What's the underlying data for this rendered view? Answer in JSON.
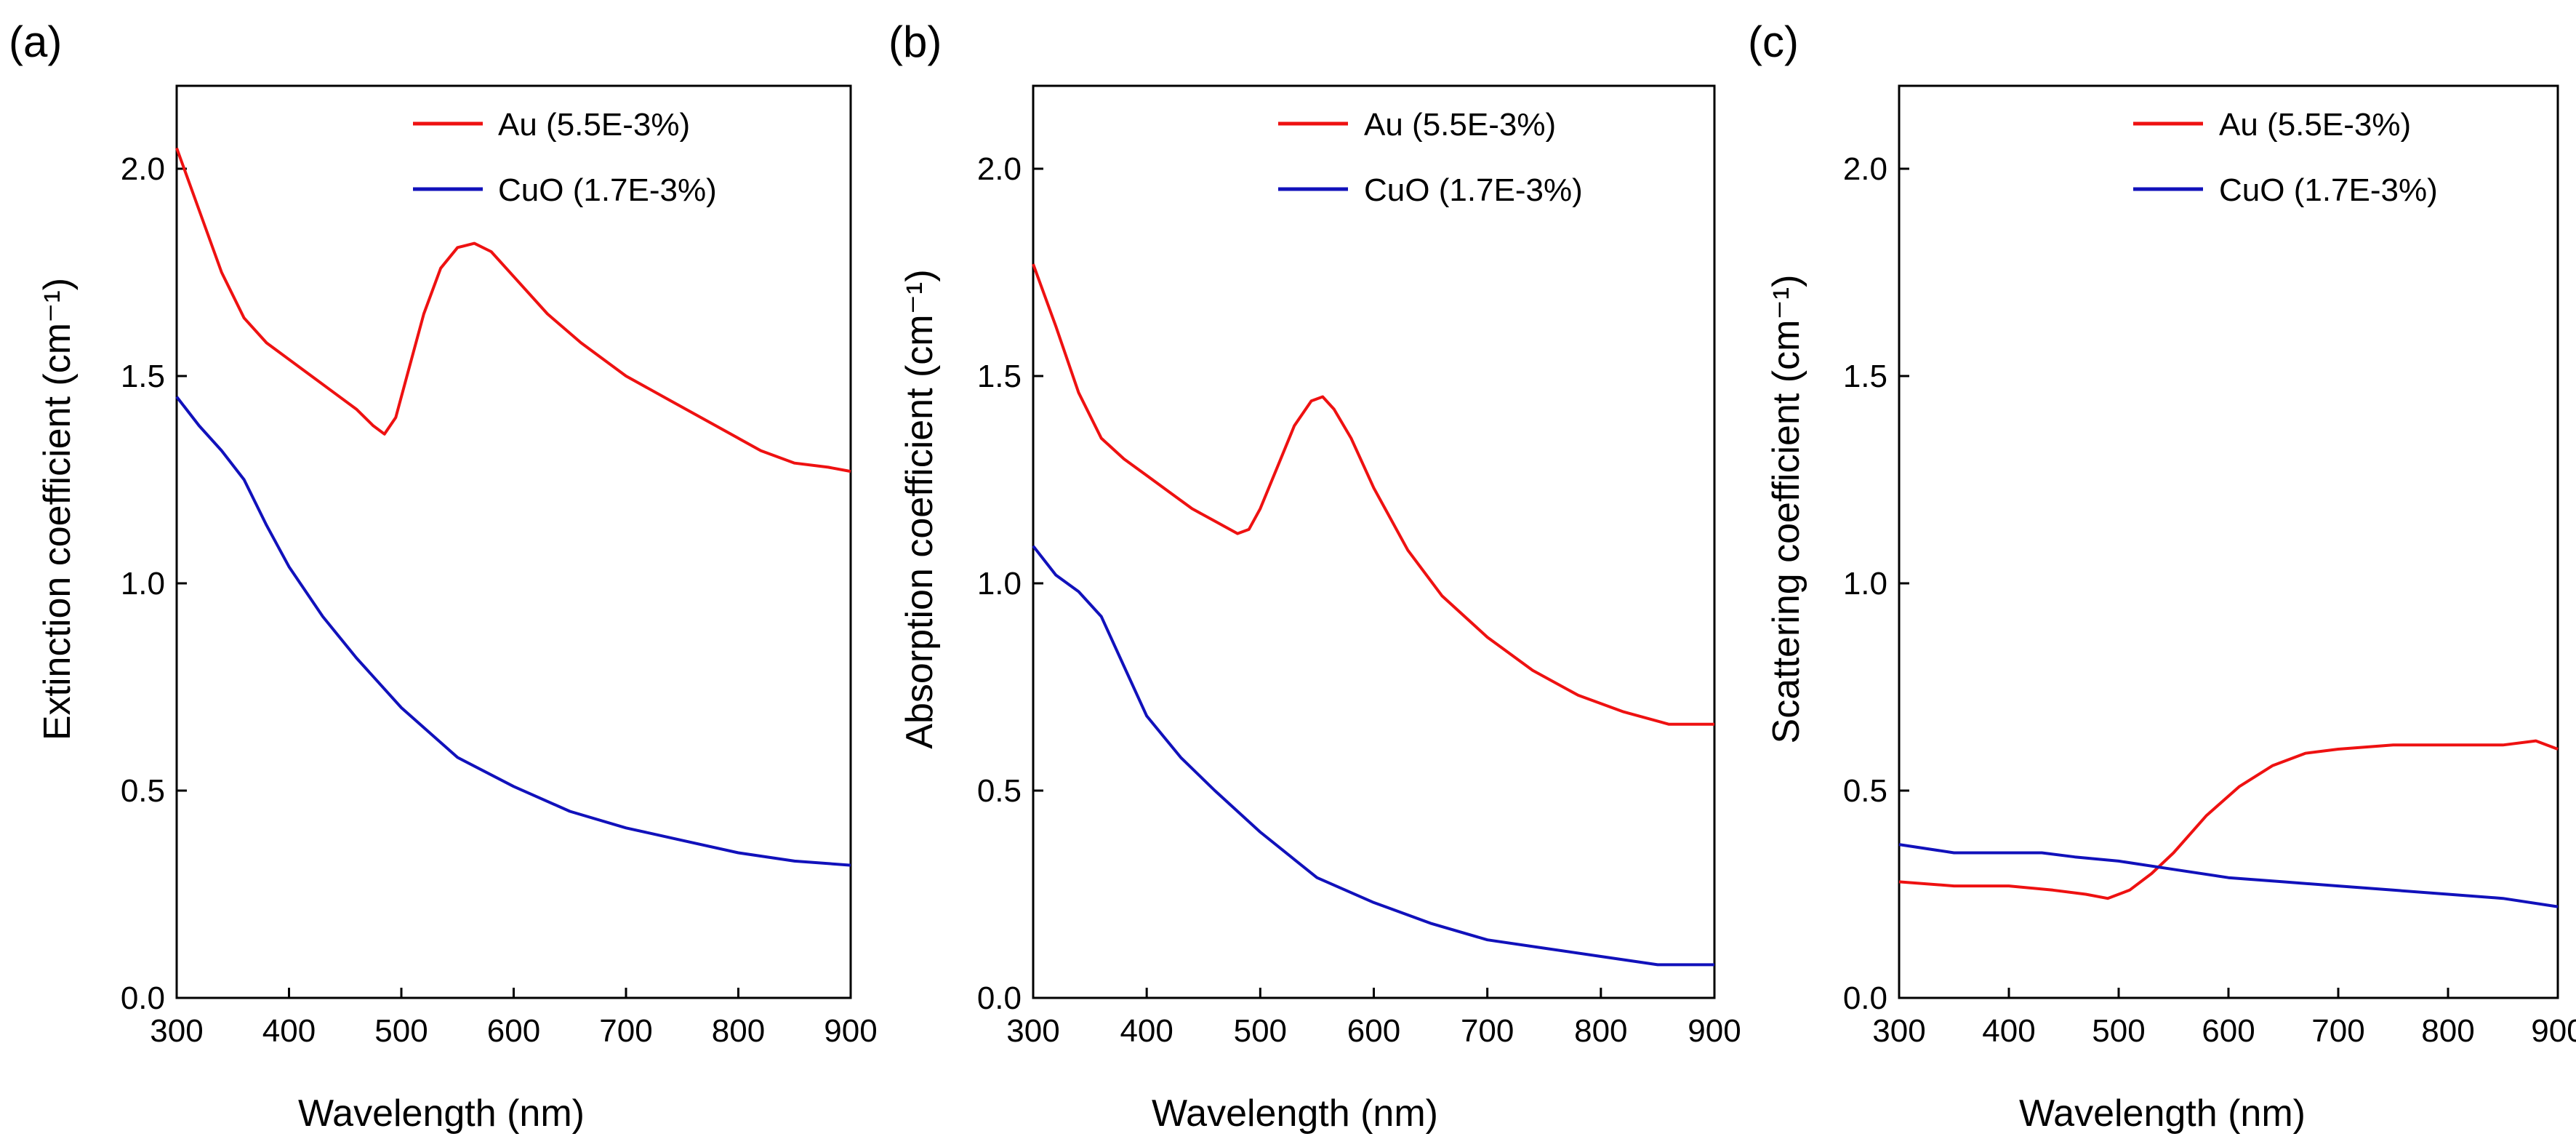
{
  "figure": {
    "x_ticks": [
      300,
      400,
      500,
      600,
      700,
      800,
      900
    ],
    "y_ticks": [
      0.0,
      0.5,
      1.0,
      1.5,
      2.0
    ],
    "colors": {
      "au": "#ee1111",
      "cuo": "#1111bb",
      "axis": "#000000"
    }
  },
  "chart_data": [
    {
      "type": "line",
      "panel_label": "(a)",
      "xlabel": "Wavelength (nm)",
      "ylabel": "Extinction coefficient (cm⁻¹)",
      "xlim": [
        300,
        900
      ],
      "ylim": [
        0,
        2.2
      ],
      "x_tick_labels": [
        "300",
        "400",
        "500",
        "600",
        "700",
        "800",
        "900"
      ],
      "y_tick_labels": [
        "0.0",
        "0.5",
        "1.0",
        "1.5",
        "2.0"
      ],
      "legend": [
        "Au (5.5E-3%)",
        "CuO (1.7E-3%)"
      ],
      "series": [
        {
          "name": "Au (5.5E-3%)",
          "color": "#ee1111",
          "x": [
            300,
            320,
            340,
            360,
            380,
            400,
            420,
            440,
            460,
            475,
            485,
            495,
            505,
            520,
            535,
            550,
            565,
            580,
            600,
            630,
            660,
            700,
            740,
            780,
            820,
            850,
            880,
            900
          ],
          "y": [
            2.05,
            1.9,
            1.75,
            1.64,
            1.58,
            1.54,
            1.5,
            1.46,
            1.42,
            1.38,
            1.36,
            1.4,
            1.5,
            1.65,
            1.76,
            1.81,
            1.82,
            1.8,
            1.74,
            1.65,
            1.58,
            1.5,
            1.44,
            1.38,
            1.32,
            1.29,
            1.28,
            1.27
          ]
        },
        {
          "name": "CuO (1.7E-3%)",
          "color": "#1111bb",
          "x": [
            300,
            320,
            340,
            360,
            380,
            400,
            430,
            460,
            500,
            550,
            600,
            650,
            700,
            750,
            800,
            850,
            900
          ],
          "y": [
            1.45,
            1.38,
            1.32,
            1.25,
            1.14,
            1.04,
            0.92,
            0.82,
            0.7,
            0.58,
            0.51,
            0.45,
            0.41,
            0.38,
            0.35,
            0.33,
            0.32
          ]
        }
      ]
    },
    {
      "type": "line",
      "panel_label": "(b)",
      "xlabel": "Wavelength (nm)",
      "ylabel": "Absorption coefficient (cm⁻¹)",
      "xlim": [
        300,
        900
      ],
      "ylim": [
        0,
        2.2
      ],
      "x_tick_labels": [
        "300",
        "400",
        "500",
        "600",
        "700",
        "800",
        "900"
      ],
      "y_tick_labels": [
        "0.0",
        "0.5",
        "1.0",
        "1.5",
        "2.0"
      ],
      "legend": [
        "Au (5.5E-3%)",
        "CuO (1.7E-3%)"
      ],
      "series": [
        {
          "name": "Au (5.5E-3%)",
          "color": "#ee1111",
          "x": [
            300,
            320,
            340,
            360,
            380,
            400,
            420,
            440,
            460,
            480,
            490,
            500,
            515,
            530,
            545,
            555,
            565,
            580,
            600,
            630,
            660,
            700,
            740,
            780,
            820,
            860,
            900
          ],
          "y": [
            1.77,
            1.62,
            1.46,
            1.35,
            1.3,
            1.26,
            1.22,
            1.18,
            1.15,
            1.12,
            1.13,
            1.18,
            1.28,
            1.38,
            1.44,
            1.45,
            1.42,
            1.35,
            1.23,
            1.08,
            0.97,
            0.87,
            0.79,
            0.73,
            0.69,
            0.66,
            0.66
          ]
        },
        {
          "name": "CuO (1.7E-3%)",
          "color": "#1111bb",
          "x": [
            300,
            320,
            340,
            360,
            380,
            400,
            430,
            460,
            500,
            550,
            600,
            650,
            700,
            750,
            800,
            850,
            900
          ],
          "y": [
            1.09,
            1.02,
            0.98,
            0.92,
            0.8,
            0.68,
            0.58,
            0.5,
            0.4,
            0.29,
            0.23,
            0.18,
            0.14,
            0.12,
            0.1,
            0.08,
            0.08
          ]
        }
      ]
    },
    {
      "type": "line",
      "panel_label": "(c)",
      "xlabel": "Wavelength (nm)",
      "ylabel": "Scattering coefficient (cm⁻¹)",
      "xlim": [
        300,
        900
      ],
      "ylim": [
        0,
        2.2
      ],
      "x_tick_labels": [
        "300",
        "400",
        "500",
        "600",
        "700",
        "800",
        "900"
      ],
      "y_tick_labels": [
        "0.0",
        "0.5",
        "1.0",
        "1.5",
        "2.0"
      ],
      "legend": [
        "Au (5.5E-3%)",
        "CuO (1.7E-3%)"
      ],
      "series": [
        {
          "name": "Au (5.5E-3%)",
          "color": "#ee1111",
          "x": [
            300,
            350,
            400,
            440,
            470,
            490,
            510,
            530,
            550,
            580,
            610,
            640,
            670,
            700,
            750,
            800,
            850,
            880,
            900
          ],
          "y": [
            0.28,
            0.27,
            0.27,
            0.26,
            0.25,
            0.24,
            0.26,
            0.3,
            0.35,
            0.44,
            0.51,
            0.56,
            0.59,
            0.6,
            0.61,
            0.61,
            0.61,
            0.62,
            0.6
          ]
        },
        {
          "name": "CuO (1.7E-3%)",
          "color": "#1111bb",
          "x": [
            300,
            350,
            400,
            430,
            460,
            500,
            550,
            600,
            650,
            700,
            750,
            800,
            850,
            900
          ],
          "y": [
            0.37,
            0.35,
            0.35,
            0.35,
            0.34,
            0.33,
            0.31,
            0.29,
            0.28,
            0.27,
            0.26,
            0.25,
            0.24,
            0.22
          ]
        }
      ]
    }
  ]
}
